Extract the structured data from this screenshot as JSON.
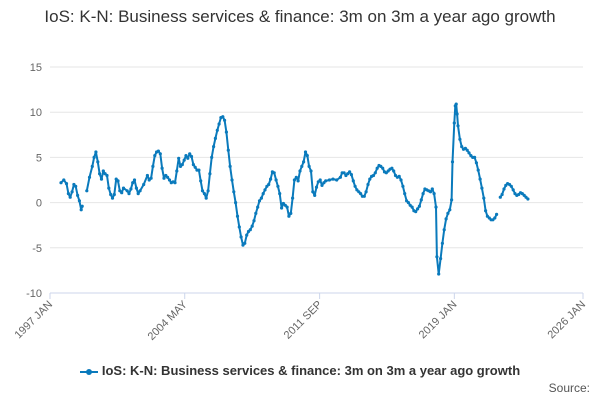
{
  "chart_data": {
    "type": "line",
    "title": "IoS: K-N: Business services & finance: 3m on 3m a year ago growth",
    "xlabel": "",
    "ylabel": "",
    "x_tick_labels": [
      "1997 JAN",
      "2004 MAY",
      "2011 SEP",
      "2019 JAN",
      "2026 JAN"
    ],
    "x_tick_years": [
      1997.0,
      2004.33,
      2011.67,
      2019.0,
      2026.0
    ],
    "xlim": [
      1997.0,
      2026.0
    ],
    "ylim": [
      -10,
      15
    ],
    "y_ticks": [
      -10,
      -5,
      0,
      5,
      10,
      15
    ],
    "grid": true,
    "legend_position": "bottom",
    "color": "#0a7abc",
    "series": [
      {
        "name": "IoS: K-N: Business services & finance: 3m on 3m a year ago growth",
        "segments": [
          [
            [
              1997.6,
              2.2
            ],
            [
              1997.75,
              2.5
            ],
            [
              1997.9,
              2.1
            ],
            [
              1998.0,
              1.0
            ],
            [
              1998.1,
              0.6
            ],
            [
              1998.2,
              1.2
            ],
            [
              1998.3,
              2.0
            ],
            [
              1998.4,
              1.8
            ],
            [
              1998.5,
              0.8
            ],
            [
              1998.6,
              0.2
            ],
            [
              1998.7,
              -0.8
            ],
            [
              1998.75,
              -0.4
            ]
          ],
          [
            [
              1999.0,
              1.3
            ],
            [
              1999.15,
              2.8
            ],
            [
              1999.3,
              4.0
            ],
            [
              1999.4,
              5.0
            ],
            [
              1999.5,
              5.6
            ],
            [
              1999.6,
              4.5
            ],
            [
              1999.7,
              3.2
            ],
            [
              1999.8,
              2.6
            ],
            [
              1999.9,
              3.5
            ],
            [
              2000.0,
              3.2
            ],
            [
              2000.1,
              3.0
            ],
            [
              2000.2,
              1.6
            ],
            [
              2000.3,
              0.9
            ],
            [
              2000.4,
              0.5
            ],
            [
              2000.5,
              0.9
            ],
            [
              2000.6,
              2.6
            ],
            [
              2000.7,
              2.4
            ],
            [
              2000.8,
              1.3
            ],
            [
              2000.9,
              1.1
            ],
            [
              2001.0,
              1.6
            ],
            [
              2001.2,
              1.3
            ],
            [
              2001.3,
              1.0
            ],
            [
              2001.4,
              1.5
            ],
            [
              2001.5,
              2.2
            ],
            [
              2001.6,
              2.5
            ],
            [
              2001.7,
              1.6
            ],
            [
              2001.8,
              1.0
            ],
            [
              2001.9,
              1.3
            ],
            [
              2002.1,
              2.0
            ],
            [
              2002.3,
              3.0
            ],
            [
              2002.4,
              2.5
            ],
            [
              2002.5,
              2.7
            ],
            [
              2002.6,
              4.0
            ],
            [
              2002.7,
              5.2
            ],
            [
              2002.8,
              5.6
            ],
            [
              2002.9,
              5.7
            ],
            [
              2003.0,
              5.4
            ],
            [
              2003.1,
              3.8
            ],
            [
              2003.2,
              2.7
            ],
            [
              2003.3,
              3.0
            ],
            [
              2003.4,
              2.8
            ],
            [
              2003.5,
              2.5
            ],
            [
              2003.6,
              2.2
            ],
            [
              2003.7,
              2.3
            ],
            [
              2003.8,
              2.2
            ],
            [
              2003.9,
              3.5
            ],
            [
              2004.0,
              4.9
            ],
            [
              2004.1,
              4.0
            ],
            [
              2004.2,
              4.2
            ],
            [
              2004.3,
              4.7
            ],
            [
              2004.4,
              5.2
            ],
            [
              2004.5,
              4.9
            ],
            [
              2004.6,
              5.4
            ],
            [
              2004.7,
              5.1
            ],
            [
              2004.8,
              4.2
            ],
            [
              2004.9,
              3.9
            ],
            [
              2005.0,
              3.6
            ],
            [
              2005.1,
              3.6
            ],
            [
              2005.2,
              2.4
            ],
            [
              2005.3,
              1.3
            ],
            [
              2005.4,
              1.0
            ],
            [
              2005.5,
              0.5
            ],
            [
              2005.6,
              1.3
            ],
            [
              2005.7,
              3.2
            ],
            [
              2005.8,
              5.0
            ],
            [
              2005.9,
              6.2
            ],
            [
              2006.0,
              7.1
            ],
            [
              2006.1,
              8.0
            ],
            [
              2006.2,
              8.7
            ],
            [
              2006.3,
              9.4
            ],
            [
              2006.4,
              9.5
            ],
            [
              2006.5,
              9.1
            ],
            [
              2006.6,
              7.8
            ],
            [
              2006.7,
              5.8
            ],
            [
              2006.8,
              4.0
            ],
            [
              2006.9,
              2.5
            ],
            [
              2007.0,
              1.2
            ],
            [
              2007.1,
              0.0
            ],
            [
              2007.2,
              -1.5
            ],
            [
              2007.3,
              -2.7
            ],
            [
              2007.4,
              -3.8
            ],
            [
              2007.5,
              -4.7
            ],
            [
              2007.6,
              -4.5
            ],
            [
              2007.7,
              -3.6
            ],
            [
              2007.8,
              -3.2
            ],
            [
              2007.9,
              -3.0
            ],
            [
              2008.0,
              -2.6
            ],
            [
              2008.1,
              -2.0
            ],
            [
              2008.2,
              -1.2
            ],
            [
              2008.3,
              -0.5
            ],
            [
              2008.4,
              0.2
            ],
            [
              2008.5,
              0.5
            ],
            [
              2008.6,
              1.0
            ],
            [
              2008.7,
              1.4
            ],
            [
              2008.8,
              1.8
            ],
            [
              2008.9,
              2.0
            ],
            [
              2009.0,
              2.6
            ],
            [
              2009.1,
              3.4
            ],
            [
              2009.2,
              3.3
            ],
            [
              2009.3,
              2.5
            ],
            [
              2009.4,
              1.8
            ],
            [
              2009.5,
              1.0
            ],
            [
              2009.6,
              -0.6
            ],
            [
              2009.7,
              -0.1
            ],
            [
              2009.8,
              -0.3
            ],
            [
              2009.9,
              -0.5
            ],
            [
              2010.0,
              -1.5
            ],
            [
              2010.1,
              -1.2
            ],
            [
              2010.2,
              0.5
            ],
            [
              2010.3,
              2.5
            ],
            [
              2010.4,
              2.8
            ],
            [
              2010.5,
              2.4
            ],
            [
              2010.6,
              3.5
            ],
            [
              2010.7,
              4.0
            ],
            [
              2010.8,
              4.5
            ],
            [
              2010.9,
              5.6
            ],
            [
              2011.0,
              5.2
            ],
            [
              2011.1,
              4.0
            ],
            [
              2011.2,
              3.5
            ],
            [
              2011.3,
              1.2
            ],
            [
              2011.4,
              0.8
            ],
            [
              2011.5,
              1.7
            ],
            [
              2011.6,
              2.3
            ],
            [
              2011.7,
              2.5
            ],
            [
              2011.8,
              1.9
            ],
            [
              2011.9,
              2.2
            ],
            [
              2012.0,
              2.4
            ],
            [
              2012.2,
              2.5
            ],
            [
              2012.4,
              2.6
            ],
            [
              2012.6,
              2.5
            ],
            [
              2012.8,
              2.8
            ],
            [
              2012.9,
              3.3
            ],
            [
              2013.0,
              3.3
            ],
            [
              2013.1,
              3.0
            ],
            [
              2013.2,
              3.2
            ],
            [
              2013.3,
              3.4
            ],
            [
              2013.4,
              3.1
            ],
            [
              2013.5,
              2.4
            ],
            [
              2013.6,
              1.8
            ],
            [
              2013.7,
              1.4
            ],
            [
              2013.8,
              1.2
            ],
            [
              2013.9,
              1.0
            ],
            [
              2014.0,
              0.7
            ],
            [
              2014.1,
              0.7
            ],
            [
              2014.2,
              1.2
            ],
            [
              2014.3,
              2.0
            ],
            [
              2014.4,
              2.6
            ],
            [
              2014.5,
              2.9
            ],
            [
              2014.6,
              3.0
            ],
            [
              2014.7,
              3.3
            ],
            [
              2014.8,
              3.8
            ],
            [
              2014.9,
              4.1
            ],
            [
              2015.0,
              4.0
            ],
            [
              2015.1,
              3.8
            ],
            [
              2015.2,
              3.4
            ],
            [
              2015.3,
              3.3
            ],
            [
              2015.4,
              3.5
            ],
            [
              2015.5,
              3.7
            ],
            [
              2015.6,
              3.8
            ],
            [
              2015.7,
              3.5
            ],
            [
              2015.8,
              3.0
            ],
            [
              2015.9,
              2.8
            ],
            [
              2016.0,
              2.9
            ],
            [
              2016.1,
              2.5
            ],
            [
              2016.2,
              1.8
            ],
            [
              2016.3,
              1.0
            ],
            [
              2016.4,
              0.2
            ],
            [
              2016.5,
              0.0
            ],
            [
              2016.6,
              -0.3
            ],
            [
              2016.7,
              -0.5
            ],
            [
              2016.8,
              -0.9
            ],
            [
              2016.9,
              -1.0
            ],
            [
              2017.0,
              -0.7
            ],
            [
              2017.1,
              -0.4
            ],
            [
              2017.2,
              0.3
            ],
            [
              2017.3,
              1.0
            ],
            [
              2017.4,
              1.5
            ],
            [
              2017.5,
              1.4
            ],
            [
              2017.6,
              1.3
            ],
            [
              2017.7,
              1.2
            ],
            [
              2017.8,
              1.5
            ],
            [
              2017.9,
              1.0
            ],
            [
              2018.0,
              -0.5
            ],
            [
              2018.05,
              -6.0
            ],
            [
              2018.15,
              -7.9
            ],
            [
              2018.25,
              -6.2
            ],
            [
              2018.35,
              -4.5
            ],
            [
              2018.45,
              -3.0
            ],
            [
              2018.55,
              -1.8
            ],
            [
              2018.65,
              -1.2
            ],
            [
              2018.75,
              -0.8
            ],
            [
              2018.85,
              0.3
            ],
            [
              2018.9,
              4.5
            ],
            [
              2019.0,
              8.8
            ],
            [
              2019.05,
              10.7
            ],
            [
              2019.1,
              10.9
            ],
            [
              2019.15,
              9.8
            ],
            [
              2019.2,
              8.5
            ],
            [
              2019.3,
              7.0
            ],
            [
              2019.4,
              6.2
            ],
            [
              2019.5,
              5.9
            ],
            [
              2019.6,
              6.0
            ],
            [
              2019.7,
              5.8
            ],
            [
              2019.8,
              5.5
            ],
            [
              2019.9,
              5.2
            ],
            [
              2020.0,
              5.0
            ],
            [
              2020.1,
              5.0
            ],
            [
              2020.2,
              4.4
            ],
            [
              2020.3,
              3.6
            ],
            [
              2020.4,
              2.6
            ],
            [
              2020.5,
              1.6
            ],
            [
              2020.6,
              0.5
            ],
            [
              2020.7,
              -0.9
            ],
            [
              2020.8,
              -1.5
            ],
            [
              2020.9,
              -1.7
            ],
            [
              2021.0,
              -1.9
            ],
            [
              2021.1,
              -1.9
            ],
            [
              2021.2,
              -1.7
            ],
            [
              2021.3,
              -1.3
            ]
          ],
          [
            [
              2021.5,
              0.6
            ],
            [
              2021.6,
              0.9
            ],
            [
              2021.7,
              1.5
            ],
            [
              2021.8,
              1.9
            ],
            [
              2021.9,
              2.1
            ],
            [
              2022.0,
              2.0
            ],
            [
              2022.1,
              1.8
            ],
            [
              2022.2,
              1.4
            ],
            [
              2022.3,
              1.0
            ],
            [
              2022.4,
              0.8
            ],
            [
              2022.5,
              0.9
            ],
            [
              2022.6,
              1.1
            ],
            [
              2022.7,
              1.0
            ],
            [
              2022.8,
              0.8
            ],
            [
              2022.9,
              0.6
            ],
            [
              2023.0,
              0.4
            ]
          ]
        ]
      }
    ]
  },
  "footer": {
    "source_label": "Source:"
  }
}
